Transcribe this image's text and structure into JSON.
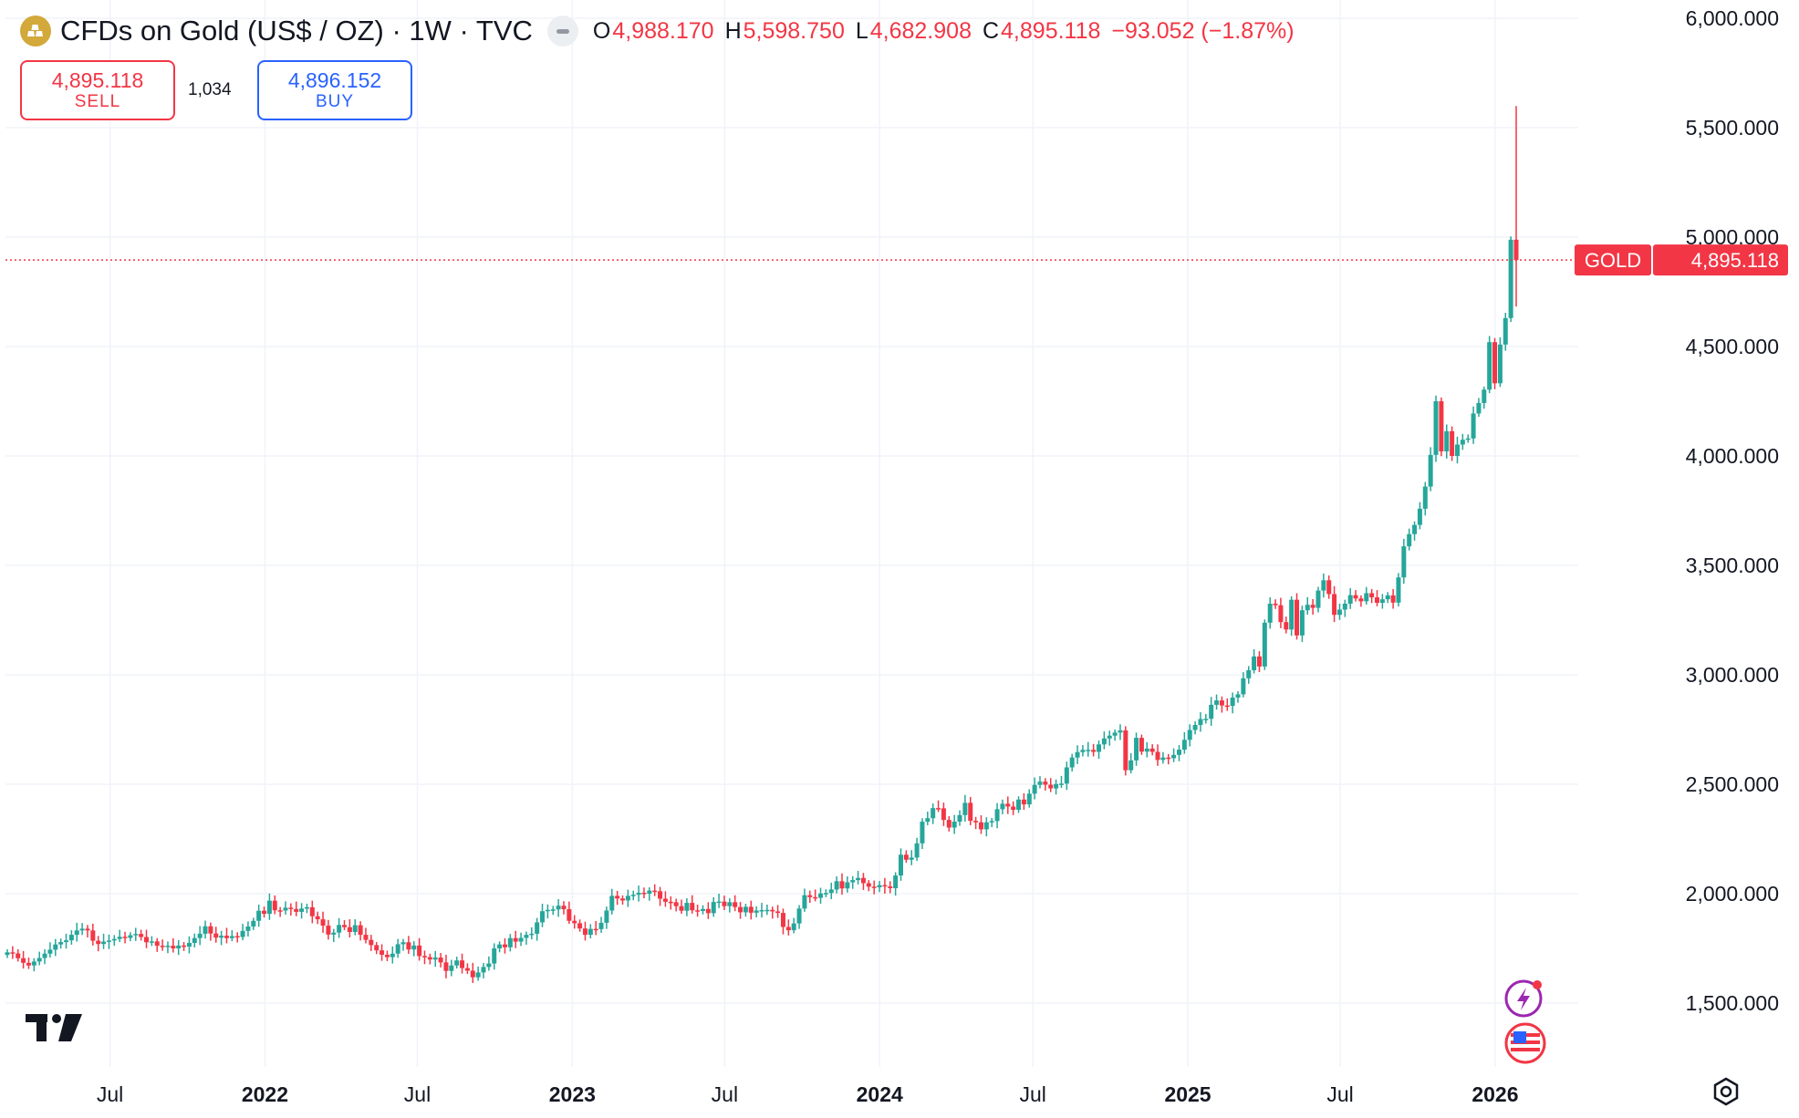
{
  "header": {
    "title": "CFDs on Gold (US$ / OZ) · 1W · TVC",
    "ohlc": [
      {
        "key": "O",
        "value": "4,988.170"
      },
      {
        "key": "H",
        "value": "5,598.750"
      },
      {
        "key": "L",
        "value": "4,682.908"
      },
      {
        "key": "C",
        "value": "4,895.118"
      },
      {
        "key": "",
        "value": "−93.052 (−1.87%)"
      }
    ]
  },
  "trade": {
    "sell_price": "4,895.118",
    "sell_label": "SELL",
    "spread": "1,034",
    "buy_price": "4,896.152",
    "buy_label": "BUY"
  },
  "colors": {
    "up": "#26a69a",
    "down": "#f23645",
    "buy": "#2962ff",
    "grid": "#f0f3fa",
    "gold_badge": "#d2a93a"
  },
  "icons": [
    "gold-bars-icon",
    "more-dots-icon",
    "tradingview-logo",
    "lightning-icon",
    "us-flag-icon",
    "settings-icon"
  ],
  "chart_data": {
    "type": "candlestick",
    "interval": "1W",
    "x_start": "2021-03-01",
    "x_end": "2026-01-26",
    "ylim": [
      1250,
      6000
    ],
    "y_ticks": [
      "1,500.000",
      "2,000.000",
      "2,500.000",
      "3,000.000",
      "3,500.000",
      "4,000.000",
      "4,500.000",
      "5,000.000",
      "5,500.000",
      "6,000.000"
    ],
    "x_ticks": [
      {
        "date": "2021-07-01",
        "label": "Jul",
        "year": false
      },
      {
        "date": "2022-01-01",
        "label": "2022",
        "year": true
      },
      {
        "date": "2022-07-01",
        "label": "Jul",
        "year": false
      },
      {
        "date": "2023-01-01",
        "label": "2023",
        "year": true
      },
      {
        "date": "2023-07-01",
        "label": "Jul",
        "year": false
      },
      {
        "date": "2024-01-01",
        "label": "2024",
        "year": true
      },
      {
        "date": "2024-07-01",
        "label": "Jul",
        "year": false
      },
      {
        "date": "2025-01-01",
        "label": "2025",
        "year": true
      },
      {
        "date": "2025-07-01",
        "label": "Jul",
        "year": false
      },
      {
        "date": "2026-01-01",
        "label": "2026",
        "year": true
      }
    ],
    "closes": [
      1732,
      1727,
      1705,
      1684,
      1672,
      1690,
      1706,
      1726,
      1744,
      1768,
      1779,
      1787,
      1812,
      1832,
      1840,
      1832,
      1785,
      1770,
      1781,
      1786,
      1793,
      1803,
      1798,
      1810,
      1816,
      1802,
      1778,
      1782,
      1762,
      1757,
      1762,
      1750,
      1763,
      1758,
      1775,
      1797,
      1817,
      1851,
      1818,
      1799,
      1808,
      1797,
      1806,
      1802,
      1830,
      1850,
      1876,
      1922,
      1908,
      1968,
      1924,
      1923,
      1936,
      1930,
      1917,
      1932,
      1938,
      1897,
      1883,
      1854,
      1813,
      1822,
      1857,
      1847,
      1825,
      1856,
      1812,
      1789,
      1765,
      1741,
      1721,
      1710,
      1726,
      1769,
      1778,
      1745,
      1763,
      1715,
      1710,
      1699,
      1708,
      1686,
      1647,
      1672,
      1695,
      1660,
      1648,
      1618,
      1640,
      1665,
      1681,
      1750,
      1768,
      1755,
      1797,
      1781,
      1798,
      1812,
      1817,
      1869,
      1920,
      1926,
      1928,
      1945,
      1929,
      1876,
      1865,
      1841,
      1812,
      1839,
      1838,
      1867,
      1923,
      1990,
      1978,
      1969,
      1990,
      1995,
      2004,
      2000,
      2014,
      2011,
      1977,
      1963,
      1961,
      1943,
      1922,
      1958,
      1924,
      1921,
      1930,
      1911,
      1962,
      1964,
      1943,
      1961,
      1939,
      1915,
      1940,
      1913,
      1923,
      1925,
      1926,
      1919,
      1912,
      1848,
      1833,
      1864,
      1932,
      1993,
      1984,
      1981,
      2001,
      2003,
      2019,
      2057,
      2024,
      2052,
      2062,
      2072,
      2048,
      2032,
      2029,
      2039,
      2033,
      2025,
      2083,
      2178,
      2155,
      2165,
      2230,
      2329,
      2345,
      2391,
      2390,
      2337,
      2302,
      2329,
      2359,
      2415,
      2333,
      2326,
      2294,
      2326,
      2332,
      2386,
      2411,
      2398,
      2383,
      2430,
      2408,
      2457,
      2497,
      2512,
      2498,
      2481,
      2501,
      2503,
      2577,
      2622,
      2647,
      2657,
      2657,
      2648,
      2682,
      2709,
      2722,
      2736,
      2746,
      2564,
      2609,
      2712,
      2649,
      2663,
      2648,
      2611,
      2622,
      2619,
      2634,
      2658,
      2703,
      2748,
      2771,
      2798,
      2799,
      2863,
      2883,
      2860,
      2858,
      2896,
      2911,
      2984,
      3021,
      3084,
      3038,
      3238,
      3325,
      3318,
      3241,
      3207,
      3343,
      3180,
      3295,
      3320,
      3306,
      3385,
      3432,
      3369,
      3274,
      3298,
      3325,
      3364,
      3349,
      3336,
      3373,
      3354,
      3329,
      3345,
      3363,
      3330,
      3445,
      3587,
      3643,
      3685,
      3759,
      3860,
      4005,
      4250,
      4021,
      4113,
      4000,
      4052,
      4074,
      4080,
      4194,
      4242,
      4303,
      4520,
      4332,
      4509,
      4630,
      4988,
      4895
    ],
    "last_price_label": "GOLD",
    "last_price": "4,895.118"
  }
}
